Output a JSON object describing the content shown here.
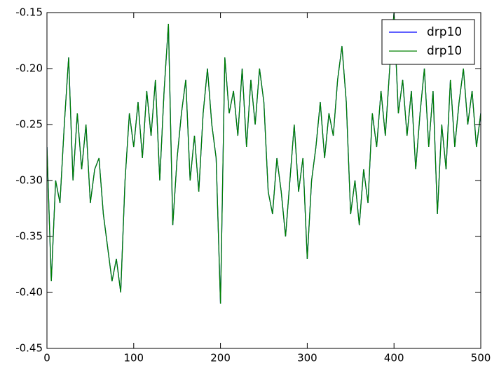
{
  "chart_data": {
    "type": "line",
    "x": [
      0,
      5,
      10,
      15,
      20,
      25,
      30,
      35,
      40,
      45,
      50,
      55,
      60,
      65,
      70,
      75,
      80,
      85,
      90,
      95,
      100,
      105,
      110,
      115,
      120,
      125,
      130,
      135,
      140,
      145,
      150,
      155,
      160,
      165,
      170,
      175,
      180,
      185,
      190,
      195,
      200,
      205,
      210,
      215,
      220,
      225,
      230,
      235,
      240,
      245,
      250,
      255,
      260,
      265,
      270,
      275,
      280,
      285,
      290,
      295,
      300,
      305,
      310,
      315,
      320,
      325,
      330,
      335,
      340,
      345,
      350,
      355,
      360,
      365,
      370,
      375,
      380,
      385,
      390,
      395,
      400,
      405,
      410,
      415,
      420,
      425,
      430,
      435,
      440,
      445,
      450,
      455,
      460,
      465,
      470,
      475,
      480,
      485,
      490,
      495,
      500
    ],
    "series": [
      {
        "name": "drp10",
        "color": "#0000ff",
        "values": [
          -0.27,
          -0.39,
          -0.3,
          -0.32,
          -0.25,
          -0.19,
          -0.3,
          -0.24,
          -0.29,
          -0.25,
          -0.32,
          -0.29,
          -0.28,
          -0.33,
          -0.36,
          -0.39,
          -0.37,
          -0.4,
          -0.3,
          -0.24,
          -0.27,
          -0.23,
          -0.28,
          -0.22,
          -0.26,
          -0.21,
          -0.3,
          -0.22,
          -0.16,
          -0.34,
          -0.28,
          -0.24,
          -0.21,
          -0.3,
          -0.26,
          -0.31,
          -0.24,
          -0.2,
          -0.25,
          -0.28,
          -0.41,
          -0.19,
          -0.24,
          -0.22,
          -0.26,
          -0.2,
          -0.27,
          -0.21,
          -0.25,
          -0.2,
          -0.23,
          -0.31,
          -0.33,
          -0.28,
          -0.31,
          -0.35,
          -0.3,
          -0.25,
          -0.31,
          -0.28,
          -0.37,
          -0.3,
          -0.27,
          -0.23,
          -0.28,
          -0.24,
          -0.26,
          -0.21,
          -0.18,
          -0.23,
          -0.33,
          -0.3,
          -0.34,
          -0.29,
          -0.32,
          -0.24,
          -0.27,
          -0.22,
          -0.26,
          -0.2,
          -0.15,
          -0.24,
          -0.21,
          -0.26,
          -0.22,
          -0.29,
          -0.24,
          -0.2,
          -0.27,
          -0.22,
          -0.33,
          -0.25,
          -0.29,
          -0.21,
          -0.27,
          -0.23,
          -0.2,
          -0.25,
          -0.22,
          -0.27,
          -0.24
        ]
      },
      {
        "name": "drp10",
        "color": "#008000",
        "values": [
          -0.27,
          -0.39,
          -0.3,
          -0.32,
          -0.25,
          -0.19,
          -0.3,
          -0.24,
          -0.29,
          -0.25,
          -0.32,
          -0.29,
          -0.28,
          -0.33,
          -0.36,
          -0.39,
          -0.37,
          -0.4,
          -0.3,
          -0.24,
          -0.27,
          -0.23,
          -0.28,
          -0.22,
          -0.26,
          -0.21,
          -0.3,
          -0.22,
          -0.16,
          -0.34,
          -0.28,
          -0.24,
          -0.21,
          -0.3,
          -0.26,
          -0.31,
          -0.24,
          -0.2,
          -0.25,
          -0.28,
          -0.41,
          -0.19,
          -0.24,
          -0.22,
          -0.26,
          -0.2,
          -0.27,
          -0.21,
          -0.25,
          -0.2,
          -0.23,
          -0.31,
          -0.33,
          -0.28,
          -0.31,
          -0.35,
          -0.3,
          -0.25,
          -0.31,
          -0.28,
          -0.37,
          -0.3,
          -0.27,
          -0.23,
          -0.28,
          -0.24,
          -0.26,
          -0.21,
          -0.18,
          -0.23,
          -0.33,
          -0.3,
          -0.34,
          -0.29,
          -0.32,
          -0.24,
          -0.27,
          -0.22,
          -0.26,
          -0.2,
          -0.15,
          -0.24,
          -0.21,
          -0.26,
          -0.22,
          -0.29,
          -0.24,
          -0.2,
          -0.27,
          -0.22,
          -0.33,
          -0.25,
          -0.29,
          -0.21,
          -0.27,
          -0.23,
          -0.2,
          -0.25,
          -0.22,
          -0.27,
          -0.24
        ]
      }
    ],
    "xlim": [
      0,
      500
    ],
    "xticks": [
      0,
      100,
      200,
      300,
      400,
      500
    ],
    "ylim": [
      -0.45,
      -0.15
    ],
    "yticks": [
      -0.45,
      {
        "value": -0.4,
        "label": "-0.40"
      },
      -0.35,
      {
        "value": -0.3,
        "label": "-0.30"
      },
      -0.25,
      {
        "value": -0.2,
        "label": "-0.20"
      },
      -0.15
    ],
    "legend": "upper right"
  }
}
